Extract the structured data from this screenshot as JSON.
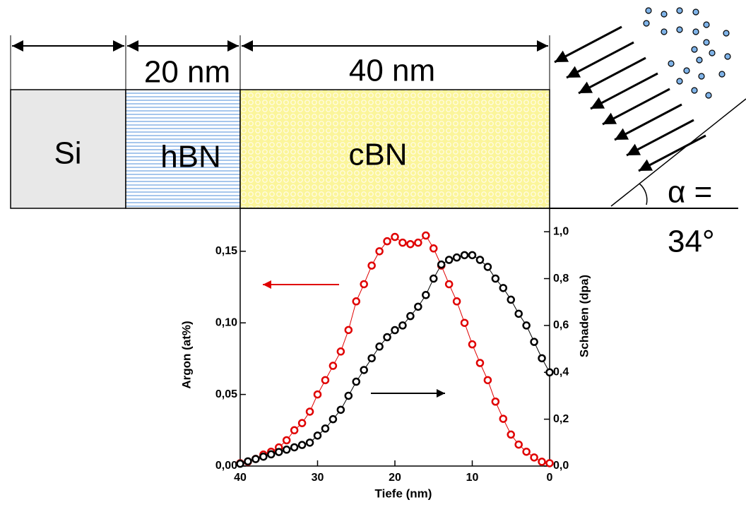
{
  "diagram": {
    "layers": [
      "Si",
      "hBN",
      "cBN"
    ],
    "dimensions": [
      "20 nm",
      "40 nm"
    ],
    "angle": [
      "α =",
      "34°"
    ]
  },
  "chart_data": {
    "type": "line",
    "xlabel": "Tiefe (nm)",
    "ylabel": "Argon (at%)",
    "y2label": "Schaden (dpa)",
    "x": [
      40,
      39,
      38,
      37,
      36,
      35,
      34,
      33,
      32,
      31,
      30,
      29,
      28,
      27,
      26,
      25,
      24,
      23,
      22,
      21,
      20,
      19,
      18,
      17,
      16,
      15,
      14,
      13,
      12,
      11,
      10,
      9,
      8,
      7,
      6,
      5,
      4,
      3,
      2,
      1,
      0
    ],
    "xlim": [
      40,
      0
    ],
    "xticks": [
      40,
      30,
      20,
      10,
      0
    ],
    "ylim": [
      0,
      0.18
    ],
    "yticks": [
      {
        "value": 0,
        "label": "0,00"
      },
      {
        "value": 0.05,
        "label": "0,05"
      },
      {
        "value": 0.1,
        "label": "0,10"
      },
      {
        "value": 0.15,
        "label": "0,15"
      }
    ],
    "y2lim": [
      0,
      1.1
    ],
    "y2ticks": [
      {
        "value": 0,
        "label": "0,0"
      },
      {
        "value": 0.2,
        "label": "0,2"
      },
      {
        "value": 0.4,
        "label": "0,4"
      },
      {
        "value": 0.6,
        "label": "0,6"
      },
      {
        "value": 0.8,
        "label": "0,8"
      },
      {
        "value": 1,
        "label": "1,0"
      }
    ],
    "series": [
      {
        "color": "#e00000",
        "axis": "y",
        "values": [
          0.002,
          0.003,
          0.005,
          0.008,
          0.01,
          0.013,
          0.018,
          0.025,
          0.03,
          0.038,
          0.05,
          0.06,
          0.07,
          0.08,
          0.095,
          0.115,
          0.127,
          0.14,
          0.15,
          0.157,
          0.16,
          0.156,
          0.155,
          0.156,
          0.161,
          0.152,
          0.14,
          0.127,
          0.115,
          0.1,
          0.085,
          0.072,
          0.06,
          0.045,
          0.033,
          0.022,
          0.015,
          0.01,
          0.006,
          0.003,
          0.002
        ]
      },
      {
        "color": "#000000",
        "axis": "y2",
        "values": [
          0.01,
          0.02,
          0.03,
          0.04,
          0.05,
          0.06,
          0.07,
          0.08,
          0.09,
          0.1,
          0.13,
          0.16,
          0.2,
          0.24,
          0.3,
          0.36,
          0.41,
          0.46,
          0.51,
          0.55,
          0.58,
          0.6,
          0.64,
          0.68,
          0.73,
          0.8,
          0.86,
          0.88,
          0.89,
          0.9,
          0.9,
          0.88,
          0.85,
          0.8,
          0.76,
          0.71,
          0.65,
          0.6,
          0.53,
          0.46,
          0.4
        ]
      }
    ]
  }
}
